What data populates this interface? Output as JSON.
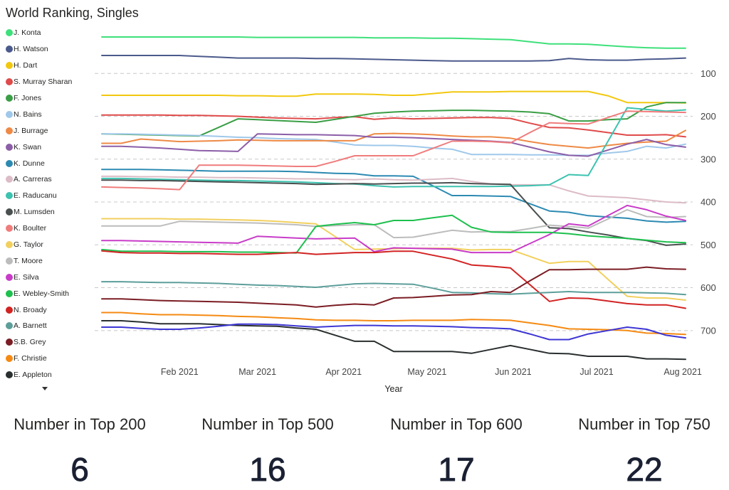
{
  "chart_data": {
    "type": "line",
    "title": "World Ranking, Singles",
    "xlabel": "Year",
    "ylabel": "",
    "ylim": [
      0,
      770
    ],
    "y_inverted": true,
    "grid": true,
    "legend_position": "left",
    "yticks": [
      100,
      200,
      300,
      400,
      500,
      600,
      700
    ],
    "xticks": [
      {
        "label": "Feb 2021",
        "date": "2021-02-01"
      },
      {
        "label": "Mar 2021",
        "date": "2021-03-01"
      },
      {
        "label": "Apr 2021",
        "date": "2021-04-01"
      },
      {
        "label": "May 2021",
        "date": "2021-05-01"
      },
      {
        "label": "Jun 2021",
        "date": "2021-06-01"
      },
      {
        "label": "Jul 2021",
        "date": "2021-07-01"
      },
      {
        "label": "Aug 2021",
        "date": "2021-08-01"
      }
    ],
    "x": [
      "2021-01-04",
      "2021-01-11",
      "2021-01-18",
      "2021-01-25",
      "2021-02-01",
      "2021-02-08",
      "2021-02-15",
      "2021-02-22",
      "2021-03-01",
      "2021-03-08",
      "2021-03-15",
      "2021-03-22",
      "2021-03-29",
      "2021-04-05",
      "2021-04-12",
      "2021-04-19",
      "2021-04-26",
      "2021-05-03",
      "2021-05-10",
      "2021-05-17",
      "2021-05-24",
      "2021-05-31",
      "2021-06-07",
      "2021-06-14",
      "2021-06-21",
      "2021-06-28",
      "2021-07-05",
      "2021-07-12",
      "2021-07-19",
      "2021-07-26",
      "2021-08-02"
    ],
    "series": [
      {
        "name": "J. Konta",
        "color": "#3ee07a",
        "values": [
          15,
          15,
          15,
          15,
          15,
          15,
          15,
          15,
          16,
          16,
          16,
          16,
          16,
          16,
          17,
          17,
          17,
          18,
          18,
          19,
          20,
          21,
          26,
          31,
          31,
          32,
          35,
          38,
          40,
          41,
          41
        ]
      },
      {
        "name": "H. Watson",
        "color": "#4b5a8c",
        "values": [
          58,
          58,
          58,
          58,
          58,
          60,
          62,
          64,
          64,
          64,
          64,
          65,
          65,
          66,
          67,
          68,
          69,
          70,
          71,
          71,
          71,
          71,
          71,
          70,
          65,
          68,
          69,
          69,
          67,
          66,
          64
        ]
      },
      {
        "name": "H. Dart",
        "color": "#f2c80f",
        "values": [
          151,
          151,
          151,
          151,
          151,
          151,
          151,
          152,
          152,
          153,
          153,
          148,
          148,
          148,
          149,
          151,
          151,
          147,
          143,
          143,
          143,
          142,
          142,
          142,
          142,
          142,
          152,
          168,
          168,
          168,
          169
        ]
      },
      {
        "name": "S. Murray Sharan",
        "color": "#e04a4a",
        "values": [
          197,
          197,
          197,
          197,
          198,
          198,
          199,
          200,
          202,
          204,
          205,
          206,
          203,
          201,
          207,
          204,
          206,
          205,
          204,
          203,
          203,
          205,
          216,
          226,
          227,
          232,
          238,
          244,
          244,
          243,
          248
        ]
      },
      {
        "name": "F. Jones",
        "color": "#3a9e45",
        "values": [
          241,
          242,
          243,
          244,
          245,
          246,
          226,
          206,
          208,
          210,
          212,
          214,
          207,
          200,
          193,
          190,
          188,
          187,
          186,
          186,
          187,
          188,
          190,
          194,
          211,
          211,
          208,
          206,
          178,
          168,
          168
        ]
      },
      {
        "name": "N. Bains",
        "color": "#9fc8ea",
        "values": [
          241,
          241,
          242,
          243,
          244,
          245,
          247,
          249,
          250,
          252,
          253,
          254,
          260,
          267,
          268,
          268,
          270,
          274,
          277,
          289,
          289,
          289,
          290,
          290,
          291,
          291,
          286,
          282,
          270,
          274,
          265
        ]
      },
      {
        "name": "J. Burrage",
        "color": "#ee8a46",
        "values": [
          263,
          263,
          253,
          256,
          259,
          258,
          257,
          255,
          256,
          257,
          257,
          257,
          257,
          257,
          241,
          240,
          241,
          243,
          246,
          248,
          248,
          251,
          259,
          266,
          270,
          274,
          268,
          263,
          260,
          258,
          233
        ]
      },
      {
        "name": "K. Swan",
        "color": "#8c5ea8",
        "values": [
          270,
          270,
          272,
          274,
          277,
          280,
          281,
          282,
          241,
          242,
          243,
          243,
          244,
          245,
          249,
          249,
          250,
          252,
          254,
          256,
          258,
          261,
          272,
          283,
          291,
          293,
          279,
          265,
          254,
          266,
          272
        ]
      },
      {
        "name": "K. Dunne",
        "color": "#2c8ab2",
        "values": [
          324,
          324,
          324,
          325,
          326,
          327,
          328,
          328,
          328,
          328,
          329,
          331,
          333,
          334,
          339,
          339,
          340,
          362,
          385,
          385,
          386,
          387,
          404,
          421,
          424,
          432,
          435,
          438,
          444,
          447,
          445
        ]
      },
      {
        "name": "A. Carreras",
        "color": "#dcbcc6",
        "values": [
          340,
          340,
          341,
          341,
          342,
          342,
          343,
          343,
          344,
          345,
          346,
          346,
          347,
          348,
          346,
          348,
          349,
          347,
          345,
          352,
          358,
          360,
          360,
          360,
          374,
          386,
          388,
          390,
          395,
          400,
          402
        ]
      },
      {
        "name": "E. Raducanu",
        "color": "#3cc3b0",
        "values": [
          345,
          345,
          346,
          347,
          348,
          349,
          350,
          350,
          351,
          352,
          353,
          355,
          357,
          358,
          362,
          365,
          364,
          364,
          364,
          364,
          364,
          363,
          362,
          360,
          336,
          338,
          259,
          180,
          184,
          188,
          185
        ]
      },
      {
        "name": "M. Lumsden",
        "color": "#4a4f4f",
        "values": [
          349,
          349,
          350,
          350,
          351,
          352,
          353,
          354,
          355,
          356,
          357,
          359,
          358,
          357,
          358,
          357,
          356,
          356,
          355,
          357,
          358,
          359,
          410,
          460,
          462,
          470,
          477,
          485,
          490,
          501,
          498
        ]
      },
      {
        "name": "K. Boulter",
        "color": "#f07c7c",
        "values": [
          365,
          366,
          367,
          369,
          371,
          314,
          314,
          314,
          315,
          316,
          317,
          317,
          305,
          292,
          292,
          292,
          292,
          275,
          258,
          258,
          259,
          262,
          238,
          215,
          217,
          218,
          203,
          188,
          189,
          190,
          191
        ]
      },
      {
        "name": "G. Taylor",
        "color": "#f2d05e",
        "values": [
          439,
          439,
          439,
          439,
          440,
          440,
          441,
          442,
          443,
          445,
          448,
          451,
          481,
          511,
          510,
          509,
          508,
          508,
          508,
          512,
          511,
          511,
          527,
          543,
          539,
          539,
          580,
          620,
          624,
          624,
          629
        ]
      },
      {
        "name": "T. Moore",
        "color": "#bcbcbc",
        "values": [
          456,
          456,
          456,
          456,
          445,
          446,
          447,
          448,
          449,
          451,
          453,
          457,
          455,
          453,
          453,
          483,
          482,
          474,
          466,
          470,
          469,
          469,
          462,
          454,
          457,
          461,
          440,
          418,
          434,
          436,
          434
        ]
      },
      {
        "name": "E. Silva",
        "color": "#c83cc8",
        "values": [
          490,
          490,
          491,
          492,
          493,
          494,
          495,
          496,
          480,
          482,
          484,
          486,
          485,
          484,
          516,
          507,
          508,
          509,
          510,
          518,
          518,
          518,
          497,
          476,
          451,
          456,
          432,
          408,
          418,
          433,
          443
        ]
      },
      {
        "name": "E. Webley-Smith",
        "color": "#1ec04e",
        "values": [
          511,
          515,
          515,
          515,
          516,
          516,
          516,
          517,
          517,
          518,
          519,
          457,
          452,
          448,
          453,
          443,
          443,
          437,
          431,
          459,
          470,
          471,
          471,
          471,
          474,
          479,
          482,
          485,
          489,
          493,
          495
        ]
      },
      {
        "name": "N. Broady",
        "color": "#d22323",
        "values": [
          514,
          518,
          519,
          519,
          520,
          520,
          521,
          522,
          522,
          520,
          518,
          522,
          520,
          518,
          518,
          515,
          515,
          524,
          533,
          547,
          550,
          554,
          593,
          632,
          624,
          625,
          631,
          637,
          640,
          640,
          648
        ]
      },
      {
        "name": "A. Barnett",
        "color": "#5c9e9a",
        "values": [
          586,
          586,
          587,
          588,
          588,
          589,
          590,
          592,
          594,
          595,
          597,
          599,
          595,
          591,
          590,
          591,
          592,
          601,
          611,
          612,
          614,
          615,
          613,
          611,
          609,
          611,
          611,
          611,
          612,
          613,
          616
        ]
      },
      {
        "name": "S.B. Grey",
        "color": "#7b1d24",
        "values": [
          626,
          626,
          628,
          630,
          631,
          632,
          633,
          634,
          636,
          638,
          640,
          645,
          641,
          638,
          640,
          624,
          623,
          620,
          617,
          616,
          609,
          611,
          584,
          558,
          558,
          557,
          557,
          557,
          552,
          556,
          557
        ]
      },
      {
        "name": "F. Christie",
        "color": "#f58a12",
        "values": [
          658,
          658,
          661,
          663,
          663,
          664,
          665,
          667,
          668,
          670,
          672,
          675,
          676,
          676,
          677,
          677,
          676,
          676,
          676,
          674,
          675,
          676,
          682,
          688,
          696,
          697,
          698,
          700,
          706,
          707,
          709
        ]
      },
      {
        "name": "E. Appleton",
        "color": "#2a2f2f",
        "values": [
          677,
          677,
          680,
          684,
          684,
          684,
          686,
          688,
          689,
          690,
          694,
          697,
          711,
          725,
          725,
          749,
          749,
          749,
          749,
          753,
          744,
          735,
          744,
          753,
          754,
          760,
          760,
          760,
          766,
          766,
          767
        ]
      },
      {
        "name": "",
        "color": "#3d36d4",
        "values": [
          692,
          692,
          695,
          697,
          697,
          694,
          690,
          685,
          685,
          686,
          689,
          692,
          690,
          688,
          688,
          689,
          689,
          690,
          691,
          693,
          694,
          696,
          708,
          721,
          721,
          708,
          700,
          692,
          697,
          711,
          717
        ]
      }
    ]
  },
  "legend": {
    "scroll_icon": "triangle-down-icon"
  },
  "kpis": [
    {
      "label": "Number in Top 200",
      "value": "6"
    },
    {
      "label": "Number in Top 500",
      "value": "16"
    },
    {
      "label": "Number in Top 600",
      "value": "17"
    },
    {
      "label": "Number in Top 750",
      "value": "22"
    }
  ]
}
